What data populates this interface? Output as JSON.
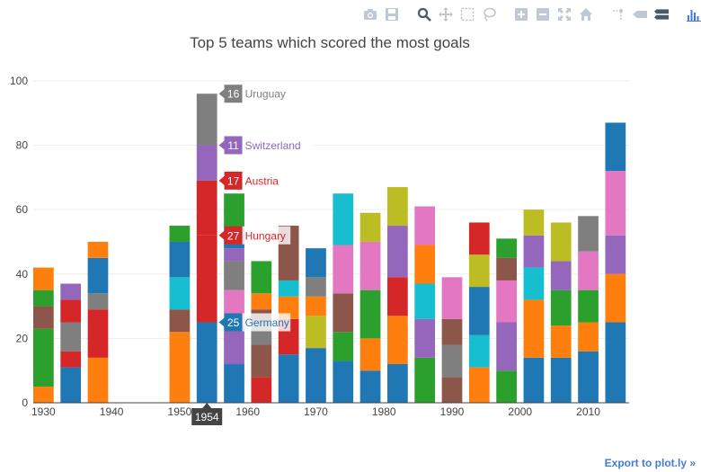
{
  "colors": {
    "blue": "#1f77b4",
    "orange": "#ff7f0e",
    "green": "#2ca02c",
    "red": "#d62728",
    "purple": "#9467bd",
    "brown": "#8c564b",
    "pink": "#e377c2",
    "gray": "#7f7f7f",
    "olive": "#bcbd22",
    "cyan": "#17becf"
  },
  "modebar": {
    "icons": [
      "camera-icon",
      "save-icon",
      "zoom-icon",
      "pan-icon",
      "box-select-icon",
      "lasso-select-icon",
      "zoom-in-icon",
      "zoom-out-icon",
      "autoscale-icon",
      "reset-axes-icon",
      "spike-lines-icon",
      "hover-closest-icon",
      "hover-compare-icon",
      "plotly-logo-icon"
    ]
  },
  "export_label": "Export to plot.ly »",
  "chart_data": {
    "type": "bar",
    "barmode": "stack",
    "title": "Top 5 teams which scored the most goals",
    "xlabel": "",
    "ylabel": "",
    "xlim": [
      1928.5,
      2016
    ],
    "ylim": [
      0,
      105
    ],
    "x_ticks": [
      1930,
      1940,
      1950,
      1960,
      1970,
      1980,
      1990,
      2000,
      2010
    ],
    "y_ticks": [
      0,
      20,
      40,
      60,
      80,
      100
    ],
    "grid": true,
    "legend": "none",
    "years": [
      {
        "year": 1930,
        "segments": [
          {
            "value": 5,
            "color": "orange"
          },
          {
            "value": 18,
            "color": "green"
          },
          {
            "value": 7,
            "color": "brown"
          },
          {
            "value": 5,
            "color": "green"
          },
          {
            "value": 7,
            "color": "orange"
          }
        ]
      },
      {
        "year": 1934,
        "segments": [
          {
            "value": 11,
            "color": "blue"
          },
          {
            "value": 5,
            "color": "red"
          },
          {
            "value": 9,
            "color": "gray"
          },
          {
            "value": 7,
            "color": "red"
          },
          {
            "value": 5,
            "color": "purple"
          }
        ]
      },
      {
        "year": 1938,
        "segments": [
          {
            "value": 14,
            "color": "orange"
          },
          {
            "value": 15,
            "color": "red"
          },
          {
            "value": 5,
            "color": "gray"
          },
          {
            "value": 11,
            "color": "blue"
          },
          {
            "value": 5,
            "color": "orange"
          }
        ]
      },
      {
        "year": 1950,
        "segments": [
          {
            "value": 22,
            "color": "orange"
          },
          {
            "value": 7,
            "color": "brown"
          },
          {
            "value": 10,
            "color": "cyan"
          },
          {
            "value": 11,
            "color": "blue"
          },
          {
            "value": 5,
            "color": "green"
          }
        ]
      },
      {
        "year": 1954,
        "segments": [
          {
            "value": 25,
            "color": "blue",
            "team": "Germany"
          },
          {
            "value": 27,
            "color": "red",
            "team": "Hungary"
          },
          {
            "value": 17,
            "color": "red",
            "team": "Austria"
          },
          {
            "value": 11,
            "color": "purple",
            "team": "Switzerland"
          },
          {
            "value": 16,
            "color": "gray",
            "team": "Uruguay"
          }
        ]
      },
      {
        "year": 1958,
        "segments": [
          {
            "value": 12,
            "color": "blue"
          },
          {
            "value": 12,
            "color": "purple"
          },
          {
            "value": 11,
            "color": "pink"
          },
          {
            "value": 9,
            "color": "gray"
          },
          {
            "value": 4,
            "color": "purple"
          },
          {
            "value": 5,
            "color": "blue"
          },
          {
            "value": 12,
            "color": "green"
          }
        ]
      },
      {
        "year": 1962,
        "segments": [
          {
            "value": 8,
            "color": "red"
          },
          {
            "value": 10,
            "color": "brown"
          },
          {
            "value": 6,
            "color": "gray"
          },
          {
            "value": 5,
            "color": "brown"
          },
          {
            "value": 5,
            "color": "orange"
          },
          {
            "value": 10,
            "color": "green"
          }
        ]
      },
      {
        "year": 1966,
        "segments": [
          {
            "value": 15,
            "color": "blue"
          },
          {
            "value": 11,
            "color": "red"
          },
          {
            "value": 7,
            "color": "orange"
          },
          {
            "value": 5,
            "color": "cyan"
          },
          {
            "value": 17,
            "color": "brown"
          }
        ]
      },
      {
        "year": 1970,
        "segments": [
          {
            "value": 17,
            "color": "blue"
          },
          {
            "value": 10,
            "color": "olive"
          },
          {
            "value": 6,
            "color": "orange"
          },
          {
            "value": 6,
            "color": "gray"
          },
          {
            "value": 9,
            "color": "blue"
          }
        ]
      },
      {
        "year": 1974,
        "segments": [
          {
            "value": 13,
            "color": "blue"
          },
          {
            "value": 9,
            "color": "green"
          },
          {
            "value": 12,
            "color": "brown"
          },
          {
            "value": 15,
            "color": "pink"
          },
          {
            "value": 16,
            "color": "cyan"
          }
        ]
      },
      {
        "year": 1978,
        "segments": [
          {
            "value": 10,
            "color": "blue"
          },
          {
            "value": 10,
            "color": "orange"
          },
          {
            "value": 15,
            "color": "green"
          },
          {
            "value": 15,
            "color": "pink"
          },
          {
            "value": 9,
            "color": "olive"
          }
        ]
      },
      {
        "year": 1982,
        "segments": [
          {
            "value": 12,
            "color": "blue"
          },
          {
            "value": 15,
            "color": "orange"
          },
          {
            "value": 12,
            "color": "red"
          },
          {
            "value": 16,
            "color": "purple"
          },
          {
            "value": 12,
            "color": "olive"
          }
        ]
      },
      {
        "year": 1986,
        "segments": [
          {
            "value": 14,
            "color": "green"
          },
          {
            "value": 12,
            "color": "purple"
          },
          {
            "value": 11,
            "color": "cyan"
          },
          {
            "value": 12,
            "color": "orange"
          },
          {
            "value": 12,
            "color": "pink"
          }
        ]
      },
      {
        "year": 1990,
        "segments": [
          {
            "value": 8,
            "color": "brown"
          },
          {
            "value": 10,
            "color": "gray"
          },
          {
            "value": 8,
            "color": "brown"
          },
          {
            "value": 13,
            "color": "pink"
          }
        ]
      },
      {
        "year": 1994,
        "segments": [
          {
            "value": 11,
            "color": "orange"
          },
          {
            "value": 10,
            "color": "cyan"
          },
          {
            "value": 15,
            "color": "blue"
          },
          {
            "value": 10,
            "color": "olive"
          },
          {
            "value": 10,
            "color": "red"
          }
        ]
      },
      {
        "year": 1998,
        "segments": [
          {
            "value": 10,
            "color": "green"
          },
          {
            "value": 15,
            "color": "purple"
          },
          {
            "value": 13,
            "color": "pink"
          },
          {
            "value": 7,
            "color": "brown"
          },
          {
            "value": 6,
            "color": "green"
          }
        ]
      },
      {
        "year": 2002,
        "segments": [
          {
            "value": 14,
            "color": "blue"
          },
          {
            "value": 18,
            "color": "orange"
          },
          {
            "value": 10,
            "color": "cyan"
          },
          {
            "value": 10,
            "color": "purple"
          },
          {
            "value": 8,
            "color": "olive"
          }
        ]
      },
      {
        "year": 2006,
        "segments": [
          {
            "value": 14,
            "color": "blue"
          },
          {
            "value": 10,
            "color": "orange"
          },
          {
            "value": 11,
            "color": "green"
          },
          {
            "value": 9,
            "color": "purple"
          },
          {
            "value": 12,
            "color": "olive"
          }
        ]
      },
      {
        "year": 2010,
        "segments": [
          {
            "value": 16,
            "color": "blue"
          },
          {
            "value": 9,
            "color": "orange"
          },
          {
            "value": 10,
            "color": "green"
          },
          {
            "value": 12,
            "color": "pink"
          },
          {
            "value": 11,
            "color": "gray"
          }
        ]
      },
      {
        "year": 2014,
        "segments": [
          {
            "value": 25,
            "color": "blue"
          },
          {
            "value": 15,
            "color": "orange"
          },
          {
            "value": 12,
            "color": "purple"
          },
          {
            "value": 20,
            "color": "pink"
          },
          {
            "value": 15,
            "color": "blue"
          }
        ]
      }
    ],
    "hover": {
      "year": 1954,
      "x_label": "1954",
      "labels": [
        {
          "value": 25,
          "team": "Germany",
          "color": "blue"
        },
        {
          "value": 27,
          "team": "Hungary",
          "color": "red"
        },
        {
          "value": 17,
          "team": "Austria",
          "color": "red"
        },
        {
          "value": 11,
          "team": "Switzerland",
          "color": "purple"
        },
        {
          "value": 16,
          "team": "Uruguay",
          "color": "gray"
        }
      ]
    }
  }
}
